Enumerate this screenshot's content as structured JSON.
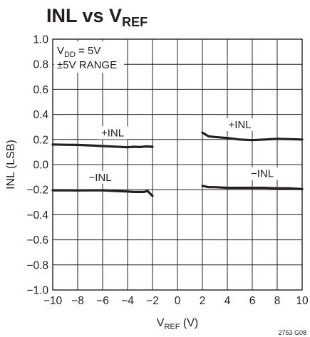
{
  "chart_data": {
    "type": "line",
    "title": "INL vs V",
    "title_subscript": "REF",
    "ylabel": "INL (LSB)",
    "xlabel": "V",
    "xlabel_subscript": "REF",
    "xlabel_unit": " (V)",
    "ylim": [
      -1.0,
      1.0
    ],
    "yticks": [
      "1.0",
      "0.8",
      "0.6",
      "0.4",
      "0.2",
      "0.0",
      "−0.2",
      "−0.4",
      "−0.6",
      "−0.8",
      "−1.0"
    ],
    "xtick_labels": [
      "−10",
      "−8",
      "−6",
      "−4",
      "−2",
      "0",
      "2",
      "4",
      "6",
      "8",
      "10"
    ],
    "grid": true,
    "annotation": {
      "line1_main": "V",
      "line1_sub": "DD",
      "line1_rest": " = 5V",
      "line2": "±5V RANGE"
    },
    "series": [
      {
        "name": "+INL",
        "segment": "negative",
        "x": [
          -10,
          -9,
          -8,
          -7,
          -6,
          -5,
          -4,
          -3.5,
          -3,
          -2.5,
          -2
        ],
        "y": [
          0.16,
          0.158,
          0.157,
          0.153,
          0.148,
          0.143,
          0.138,
          0.142,
          0.14,
          0.145,
          0.142
        ]
      },
      {
        "name": "−INL",
        "segment": "negative",
        "x": [
          -10,
          -9,
          -8,
          -7,
          -6,
          -5,
          -4,
          -3.5,
          -3,
          -2.7,
          -2.4,
          -2
        ],
        "y": [
          -0.205,
          -0.205,
          -0.206,
          -0.205,
          -0.205,
          -0.21,
          -0.215,
          -0.218,
          -0.218,
          -0.218,
          -0.21,
          -0.25
        ]
      },
      {
        "name": "+INL",
        "segment": "positive",
        "x": [
          2,
          2.5,
          3,
          4,
          5,
          6,
          7,
          8,
          9,
          10
        ],
        "y": [
          0.255,
          0.225,
          0.22,
          0.212,
          0.2,
          0.195,
          0.2,
          0.205,
          0.203,
          0.2
        ]
      },
      {
        "name": "−INL",
        "segment": "positive",
        "x": [
          2,
          2.5,
          3,
          4,
          5,
          6,
          7,
          8,
          9,
          10
        ],
        "y": [
          -0.17,
          -0.18,
          -0.18,
          -0.185,
          -0.185,
          -0.185,
          -0.185,
          -0.19,
          -0.19,
          -0.195
        ]
      }
    ],
    "series_labels": [
      {
        "text": "+INL",
        "x": -5.2,
        "y": 0.225
      },
      {
        "text": "−INL",
        "x": -6.2,
        "y": -0.13
      },
      {
        "text": "+INL",
        "x": 5.0,
        "y": 0.29
      },
      {
        "text": "−INL",
        "x": 6.8,
        "y": -0.1
      }
    ]
  },
  "figure_id": "2753 G08"
}
